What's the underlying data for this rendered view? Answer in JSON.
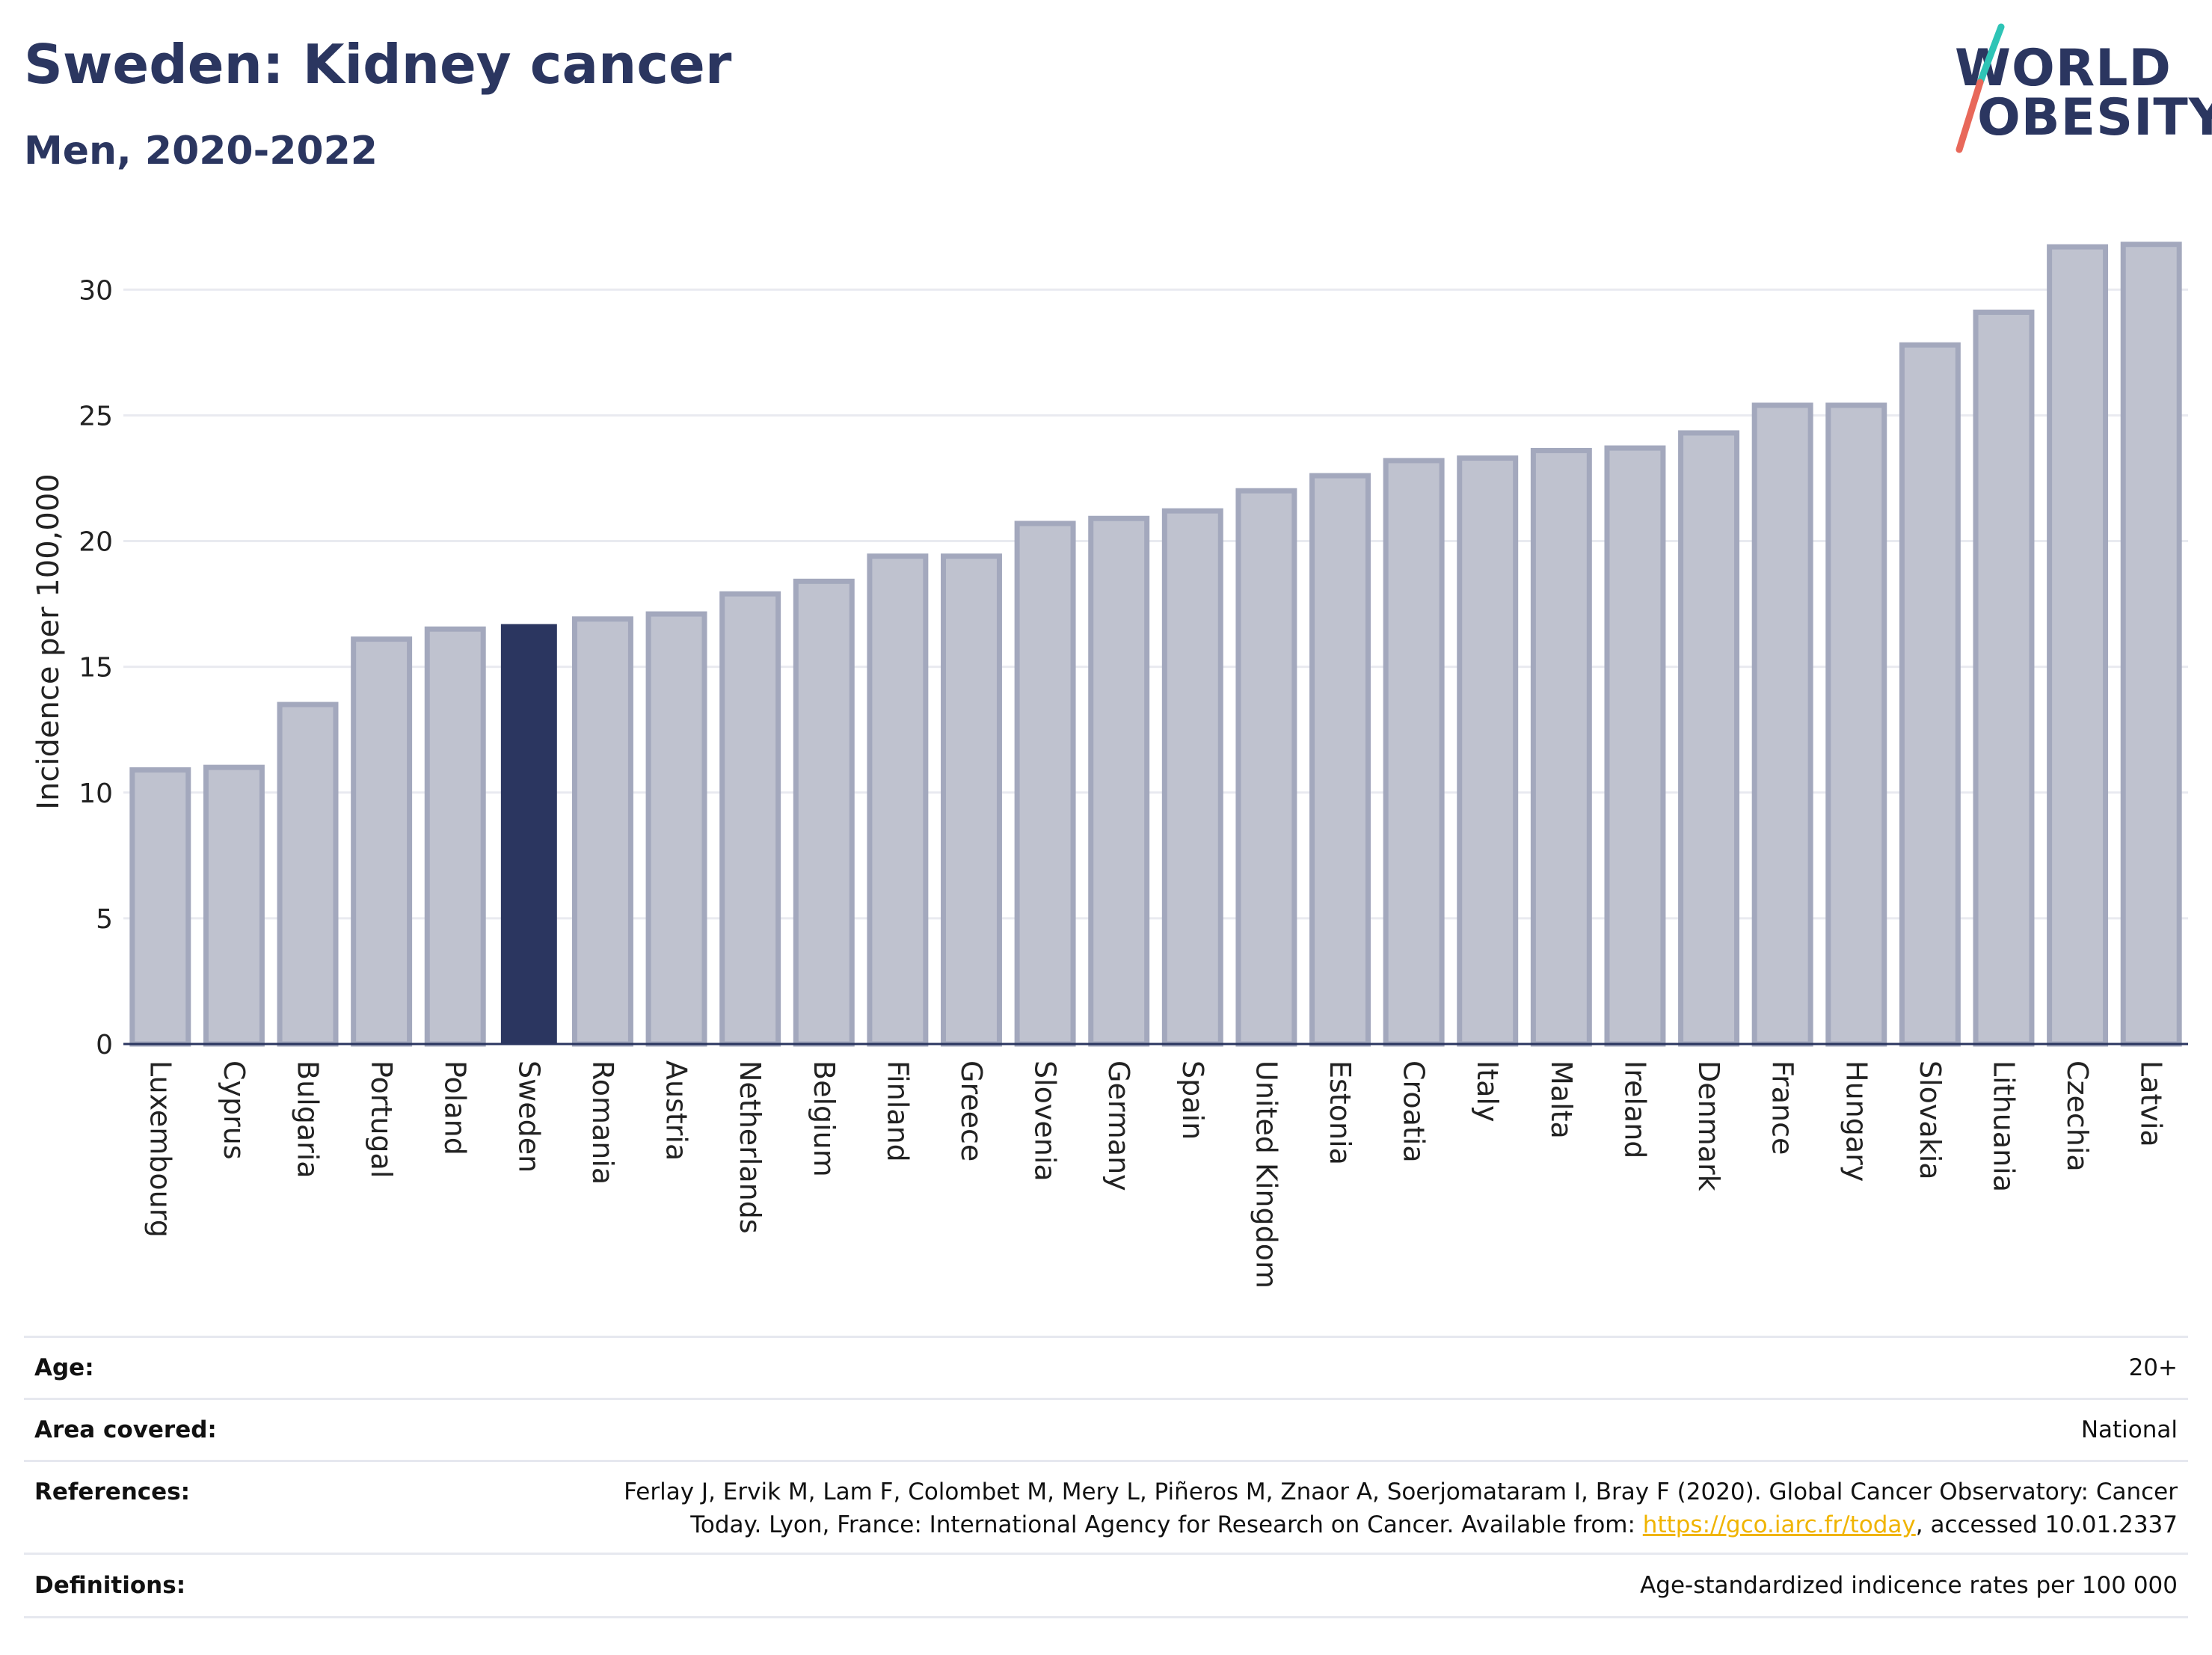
{
  "header": {
    "title": "Sweden: Kidney cancer",
    "subtitle": "Men, 2020-2022"
  },
  "logo": {
    "line1": "WORLD",
    "line2": "OBESITY",
    "colors": {
      "text": "#2b3660",
      "slash_top": "#2ec4b6",
      "slash_bottom": "#e8685a"
    }
  },
  "chart_data": {
    "type": "bar",
    "title": "",
    "xlabel": "",
    "ylabel": "Incidence per 100,000",
    "ylim": [
      0,
      32
    ],
    "yticks": [
      0,
      5,
      10,
      15,
      20,
      25,
      30
    ],
    "grid": true,
    "highlight": "Sweden",
    "colors": {
      "bar": "#bfc2cf",
      "bar_border": "#a3a8bd",
      "highlight": "#2b3660"
    },
    "categories": [
      "Luxembourg",
      "Cyprus",
      "Bulgaria",
      "Portugal",
      "Poland",
      "Sweden",
      "Romania",
      "Austria",
      "Netherlands",
      "Belgium",
      "Finland",
      "Greece",
      "Slovenia",
      "Germany",
      "Spain",
      "United Kingdom",
      "Estonia",
      "Croatia",
      "Italy",
      "Malta",
      "Ireland",
      "Denmark",
      "France",
      "Hungary",
      "Slovakia",
      "Lithuania",
      "Czechia",
      "Latvia"
    ],
    "values": [
      10.9,
      11.0,
      13.5,
      16.1,
      16.5,
      16.7,
      16.9,
      17.1,
      17.9,
      18.4,
      19.4,
      19.4,
      20.7,
      20.9,
      21.2,
      22.0,
      22.6,
      23.2,
      23.3,
      23.6,
      23.7,
      24.3,
      25.4,
      25.4,
      27.8,
      29.1,
      31.7,
      31.8
    ]
  },
  "info": {
    "age_label": "Age:",
    "age_value": "20+",
    "area_label": "Area covered:",
    "area_value": "National",
    "references_label": "References:",
    "references_line1": "Ferlay J, Ervik M, Lam F, Colombet M, Mery L, Piñeros M, Znaor A, Soerjomataram I, Bray F (2020). Global Cancer Observatory: Cancer",
    "references_line2_pre": "Today. Lyon, France: International Agency for Research on Cancer. Available from: ",
    "references_link": "https://gco.iarc.fr/today",
    "references_line2_post": ", accessed 10.01.2337",
    "definitions_label": "Definitions:",
    "definitions_value": "Age-standardized indicence rates per 100 000"
  }
}
